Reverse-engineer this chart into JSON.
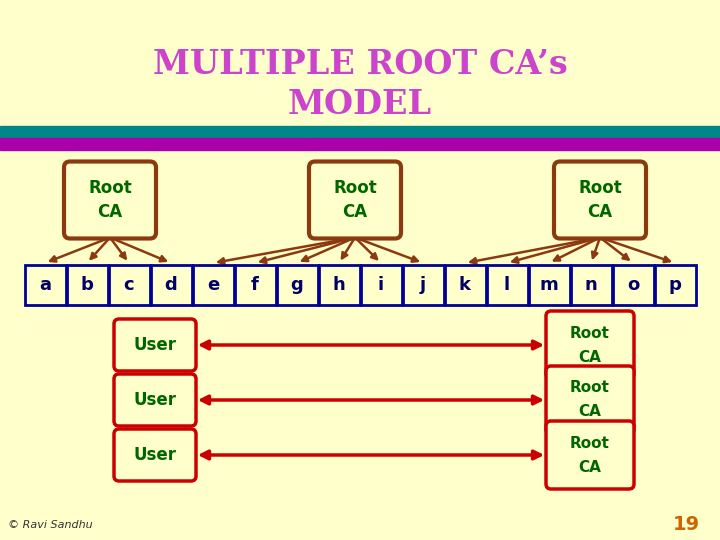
{
  "title_line1": "MULTIPLE ROOT CA’s",
  "title_line2": "MODEL",
  "title_color": "#cc44cc",
  "bg_color": "#ffffcc",
  "stripe1_color": "#008888",
  "stripe2_color": "#aa00aa",
  "root_ca_box_color": "#8B3A10",
  "root_ca_text_color": "#006600",
  "leaf_box_color": "#000099",
  "leaf_text_color": "#ffffcc",
  "arrow_color": "#8B3A10",
  "user_box_color": "#cc0000",
  "user_text_color": "#006600",
  "user_rootca_color": "#cc0000",
  "user_rootca_text_color": "#006600",
  "copyright_text": "© Ravi Sandhu",
  "page_number": "19",
  "footer_color": "#333333",
  "page_num_color": "#cc6600",
  "leaf_labels": [
    "a",
    "b",
    "c",
    "d",
    "e",
    "f",
    "g",
    "h",
    "i",
    "j",
    "k",
    "l",
    "m",
    "n",
    "o",
    "p"
  ],
  "rca_groups": [
    [
      0,
      1,
      2,
      3
    ],
    [
      4,
      5,
      6,
      7,
      8,
      9
    ],
    [
      10,
      11,
      12,
      13,
      14,
      15
    ]
  ]
}
